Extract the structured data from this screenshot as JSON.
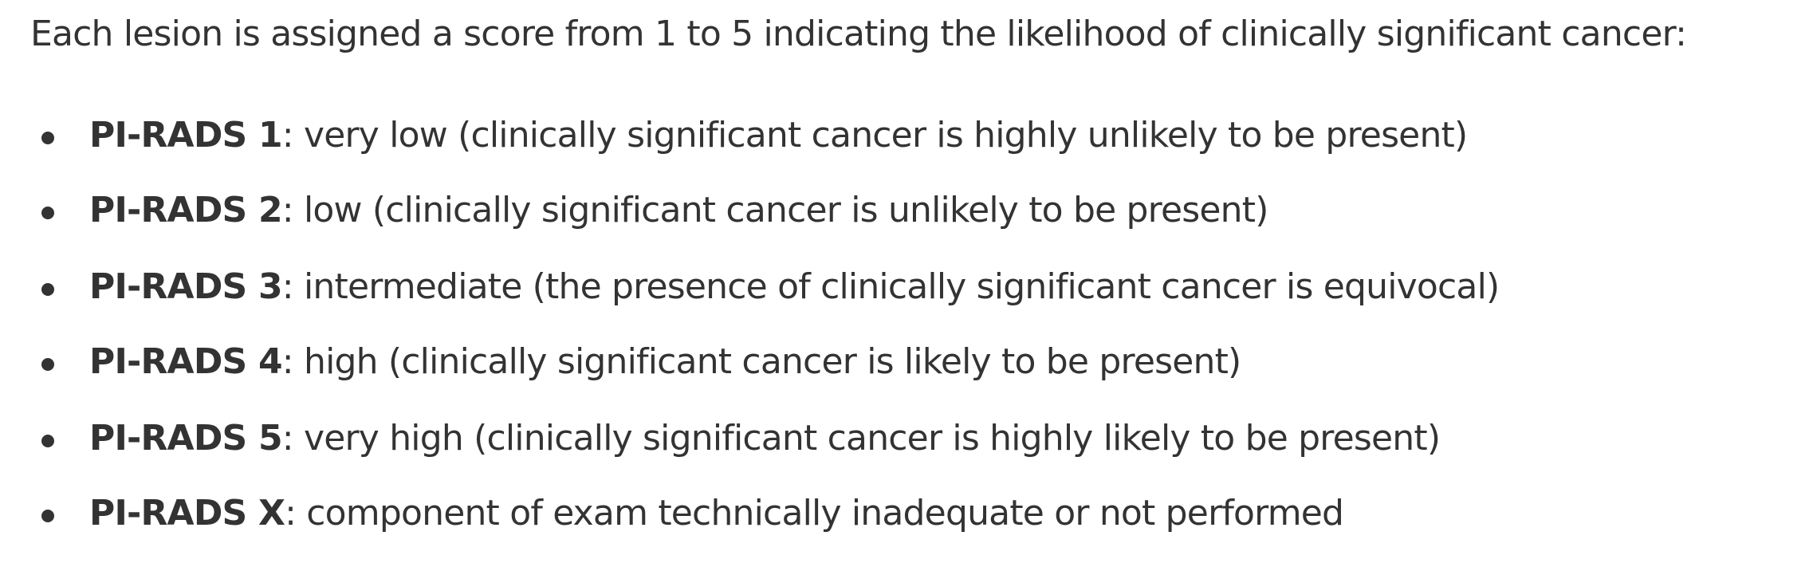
{
  "intro": "Each lesion is assigned a score from 1 to 5 indicating the likelihood of clinically significant cancer:",
  "scores": [
    {
      "term": "PI-RADS 1",
      "description": ": very low (clinically significant cancer is highly unlikely to be present)"
    },
    {
      "term": "PI-RADS 2",
      "description": ": low (clinically significant cancer is unlikely to be present)"
    },
    {
      "term": "PI-RADS 3",
      "description": ": intermediate (the presence of clinically significant cancer is equivocal)"
    },
    {
      "term": "PI-RADS 4",
      "description": ": high (clinically significant cancer is likely to be present)"
    },
    {
      "term": "PI-RADS 5",
      "description": ": very high (clinically significant cancer is highly likely to be present)"
    },
    {
      "term": "PI-RADS X",
      "description": ": component of exam technically inadequate or not performed"
    }
  ]
}
